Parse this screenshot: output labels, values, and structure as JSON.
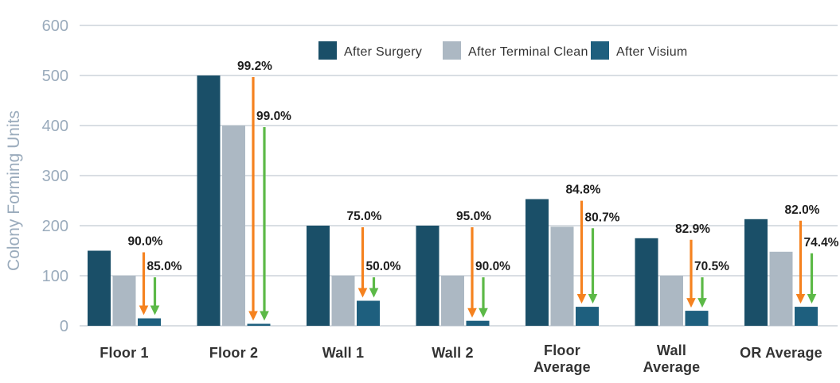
{
  "chart_data": {
    "type": "bar",
    "title": "",
    "ylabel": "Colony Forming Units",
    "ylim": [
      0,
      600
    ],
    "yticks": [
      0,
      100,
      200,
      300,
      400,
      500,
      600
    ],
    "grid": true,
    "legend_position": "top-center",
    "categories": [
      [
        "Floor 1"
      ],
      [
        "Floor 2"
      ],
      [
        "Wall 1"
      ],
      [
        "Wall 2"
      ],
      [
        "Floor",
        "Average"
      ],
      [
        "Wall",
        "Average"
      ],
      [
        "OR Average"
      ]
    ],
    "series": [
      {
        "name": "After Surgery",
        "color": "#1A4F68",
        "values": [
          150,
          500,
          200,
          200,
          253,
          175,
          213
        ]
      },
      {
        "name": "After Terminal Clean",
        "color": "#ACB8C3",
        "values": [
          100,
          400,
          100,
          100,
          198,
          100,
          148
        ]
      },
      {
        "name": "After Visium",
        "color": "#1E5F7E",
        "values": [
          15,
          4,
          50,
          10,
          38,
          30,
          38
        ]
      }
    ],
    "reduction_annotations": {
      "vs_after_surgery": {
        "color": "#F5821F",
        "labels": [
          "90.0%",
          "99.2%",
          "75.0%",
          "95.0%",
          "84.8%",
          "82.9%",
          "82.0%"
        ]
      },
      "vs_after_terminal_clean": {
        "color": "#5CB947",
        "labels": [
          "85.0%",
          "99.0%",
          "50.0%",
          "90.0%",
          "80.7%",
          "70.5%",
          "74.4%"
        ]
      }
    },
    "colors": {
      "axis_text": "#9AABBC",
      "gridline": "#D9DEE3",
      "category_text": "#333333",
      "percent_text": "#1E1E1E",
      "background": "#FFFFFF"
    }
  }
}
